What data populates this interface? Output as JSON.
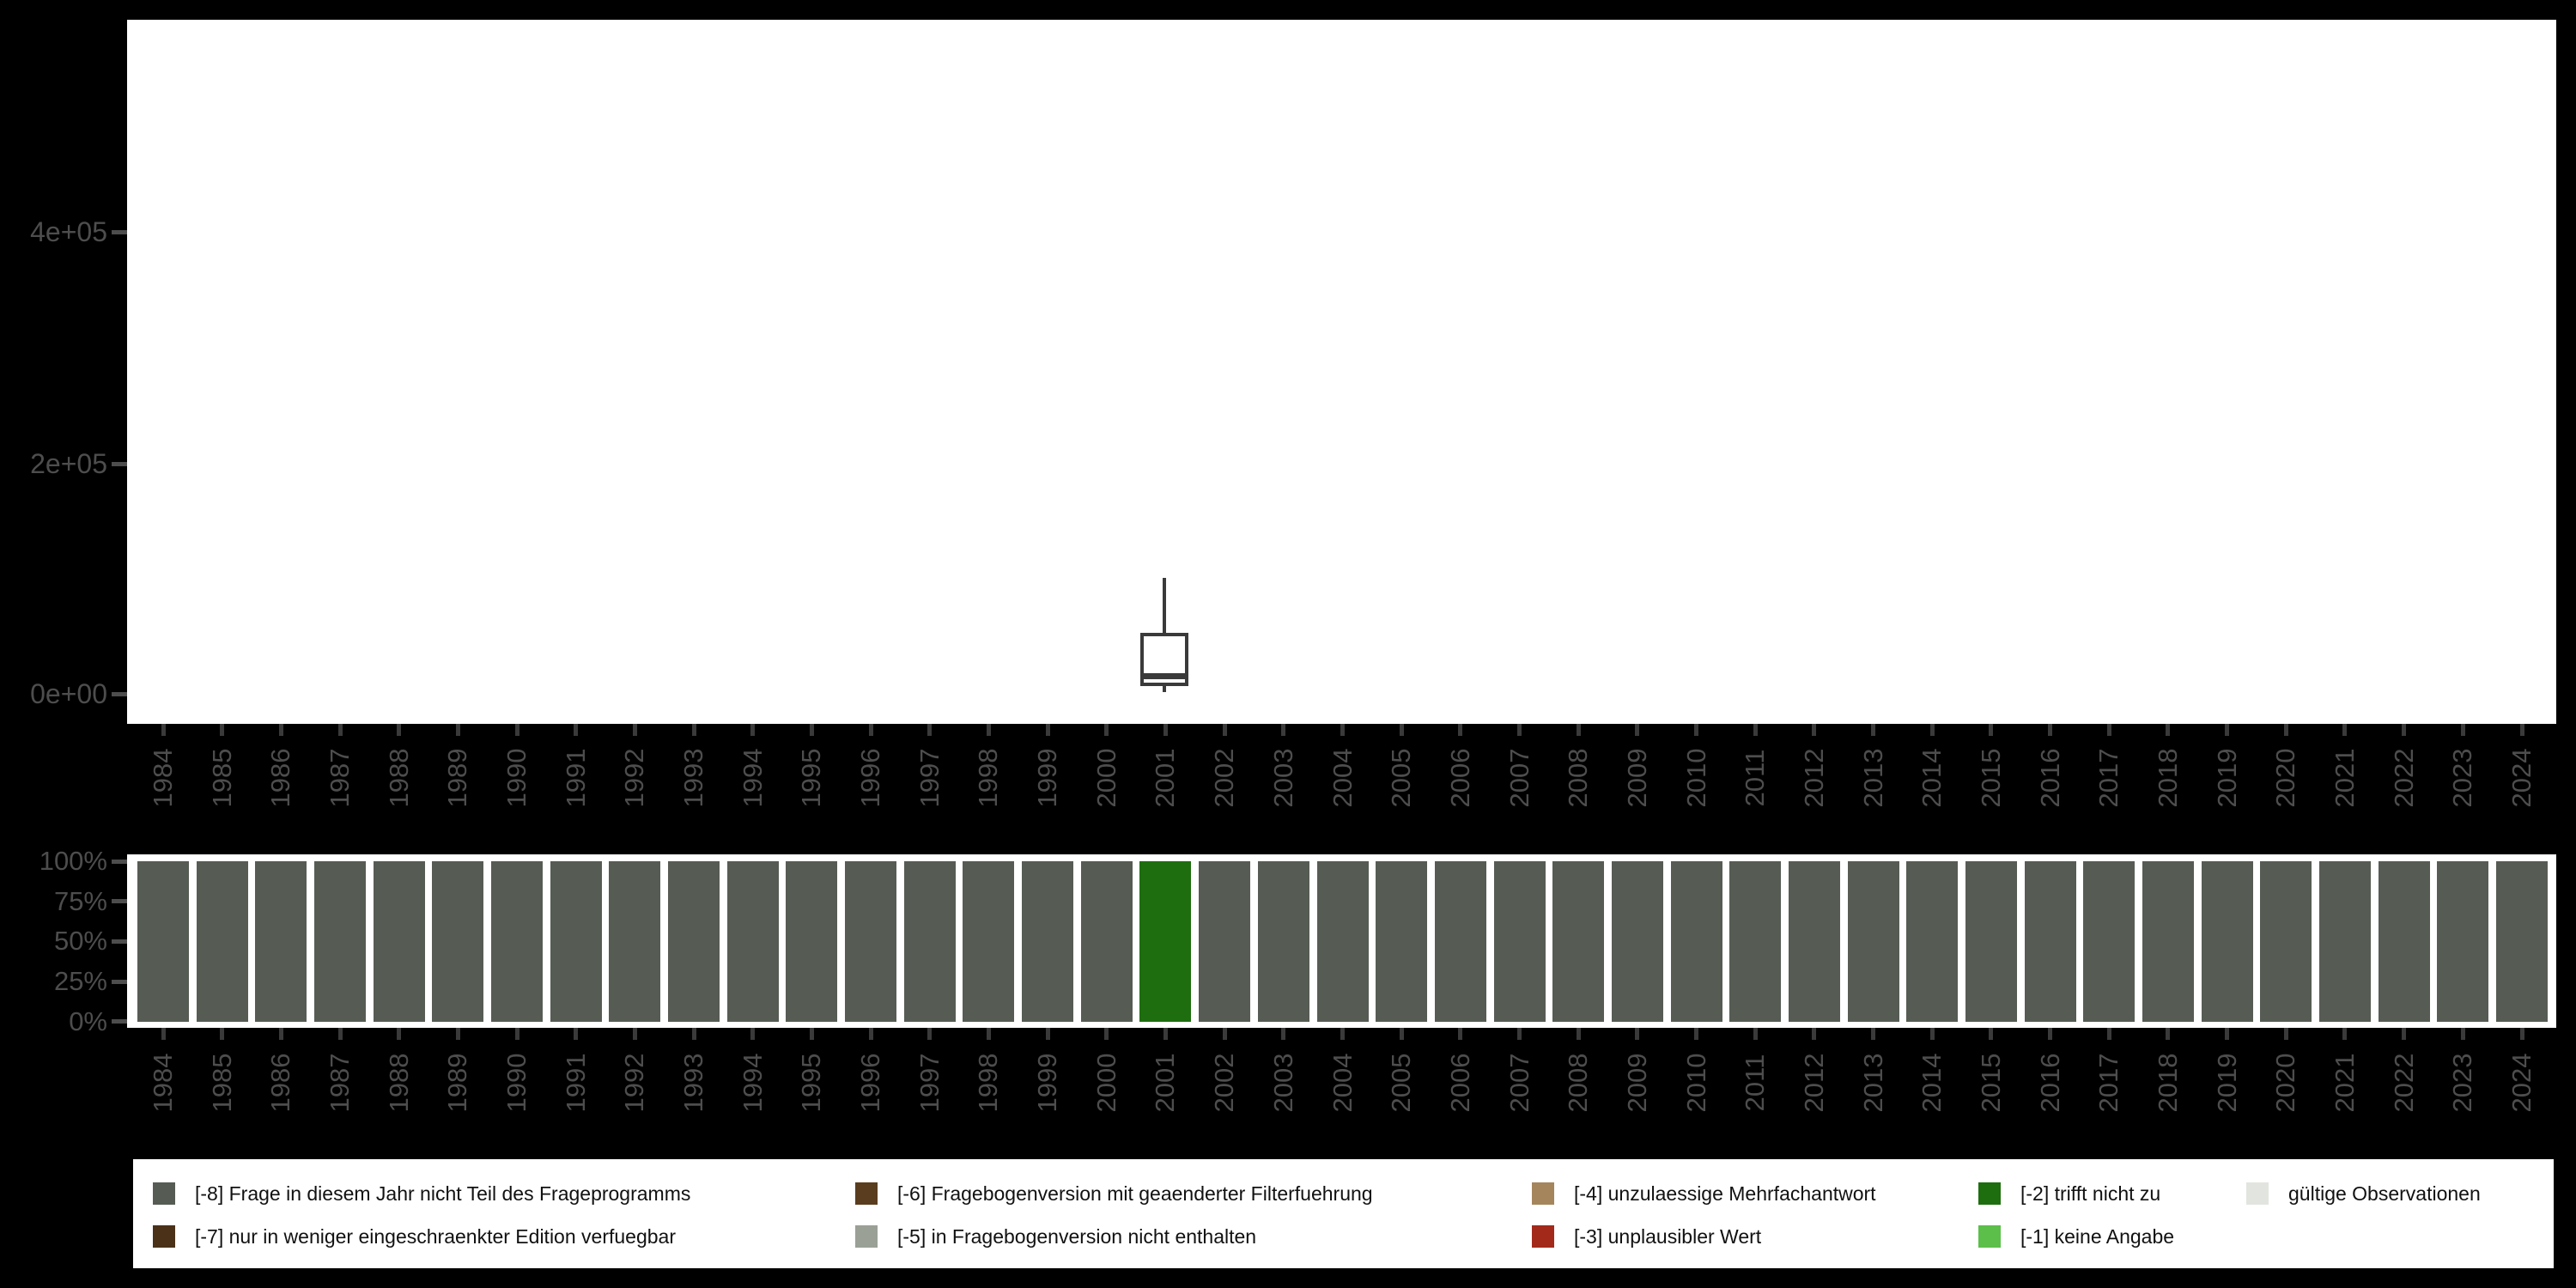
{
  "figure": {
    "background_color": "#000000",
    "panel_background_color": "#ffffff",
    "axis_text_color": "#4d4d4d",
    "tick_color": "#3a3a3a",
    "boxplot_stroke_color": "#3a3a3a"
  },
  "chart_data": [
    {
      "type": "boxplot",
      "title": "",
      "xlabel": "",
      "ylabel": "",
      "grid": false,
      "x_tick_rotation_deg": 90,
      "categories": [
        "1984",
        "1985",
        "1986",
        "1987",
        "1988",
        "1989",
        "1990",
        "1991",
        "1992",
        "1993",
        "1994",
        "1995",
        "1996",
        "1997",
        "1998",
        "1999",
        "2000",
        "2001",
        "2002",
        "2003",
        "2004",
        "2005",
        "2006",
        "2007",
        "2008",
        "2009",
        "2010",
        "2011",
        "2012",
        "2013",
        "2014",
        "2015",
        "2016",
        "2017",
        "2018",
        "2019",
        "2020",
        "2021",
        "2022",
        "2023",
        "2024"
      ],
      "y_ticks": [
        {
          "label": "0e+00",
          "value": 0
        },
        {
          "label": "2e+05",
          "value": 200000
        },
        {
          "label": "4e+05",
          "value": 400000
        }
      ],
      "ylim": [
        0,
        585000
      ],
      "boxes": [
        {
          "category": "2001",
          "lower_whisker": 1500,
          "q1": 6500,
          "median": 16000,
          "q3": 53000,
          "upper_whisker": 101000
        }
      ]
    },
    {
      "type": "bar",
      "stacking": "percent",
      "title": "",
      "xlabel": "",
      "ylabel": "",
      "grid": false,
      "x_tick_rotation_deg": 90,
      "y_tick_labels": [
        "100%",
        "75%",
        "50%",
        "25%",
        "0%"
      ],
      "bars": [
        {
          "year": "1984",
          "code": "[-8]",
          "percent": 100
        },
        {
          "year": "1985",
          "code": "[-8]",
          "percent": 100
        },
        {
          "year": "1986",
          "code": "[-8]",
          "percent": 100
        },
        {
          "year": "1987",
          "code": "[-8]",
          "percent": 100
        },
        {
          "year": "1988",
          "code": "[-8]",
          "percent": 100
        },
        {
          "year": "1989",
          "code": "[-8]",
          "percent": 100
        },
        {
          "year": "1990",
          "code": "[-8]",
          "percent": 100
        },
        {
          "year": "1991",
          "code": "[-8]",
          "percent": 100
        },
        {
          "year": "1992",
          "code": "[-8]",
          "percent": 100
        },
        {
          "year": "1993",
          "code": "[-8]",
          "percent": 100
        },
        {
          "year": "1994",
          "code": "[-8]",
          "percent": 100
        },
        {
          "year": "1995",
          "code": "[-8]",
          "percent": 100
        },
        {
          "year": "1996",
          "code": "[-8]",
          "percent": 100
        },
        {
          "year": "1997",
          "code": "[-8]",
          "percent": 100
        },
        {
          "year": "1998",
          "code": "[-8]",
          "percent": 100
        },
        {
          "year": "1999",
          "code": "[-8]",
          "percent": 100
        },
        {
          "year": "2000",
          "code": "[-8]",
          "percent": 100
        },
        {
          "year": "2001",
          "code": "[-2]",
          "percent": 100
        },
        {
          "year": "2002",
          "code": "[-8]",
          "percent": 100
        },
        {
          "year": "2003",
          "code": "[-8]",
          "percent": 100
        },
        {
          "year": "2004",
          "code": "[-8]",
          "percent": 100
        },
        {
          "year": "2005",
          "code": "[-8]",
          "percent": 100
        },
        {
          "year": "2006",
          "code": "[-8]",
          "percent": 100
        },
        {
          "year": "2007",
          "code": "[-8]",
          "percent": 100
        },
        {
          "year": "2008",
          "code": "[-8]",
          "percent": 100
        },
        {
          "year": "2009",
          "code": "[-8]",
          "percent": 100
        },
        {
          "year": "2010",
          "code": "[-8]",
          "percent": 100
        },
        {
          "year": "2011",
          "code": "[-8]",
          "percent": 100
        },
        {
          "year": "2012",
          "code": "[-8]",
          "percent": 100
        },
        {
          "year": "2013",
          "code": "[-8]",
          "percent": 100
        },
        {
          "year": "2014",
          "code": "[-8]",
          "percent": 100
        },
        {
          "year": "2015",
          "code": "[-8]",
          "percent": 100
        },
        {
          "year": "2016",
          "code": "[-8]",
          "percent": 100
        },
        {
          "year": "2017",
          "code": "[-8]",
          "percent": 100
        },
        {
          "year": "2018",
          "code": "[-8]",
          "percent": 100
        },
        {
          "year": "2019",
          "code": "[-8]",
          "percent": 100
        },
        {
          "year": "2020",
          "code": "[-8]",
          "percent": 100
        },
        {
          "year": "2021",
          "code": "[-8]",
          "percent": 100
        },
        {
          "year": "2022",
          "code": "[-8]",
          "percent": 100
        },
        {
          "year": "2023",
          "code": "[-8]",
          "percent": 100
        },
        {
          "year": "2024",
          "code": "[-8]",
          "percent": 100
        }
      ]
    }
  ],
  "legend": {
    "position": "bottom",
    "items": [
      {
        "code": "[-8]",
        "label": "[-8] Frage in diesem Jahr nicht Teil des Frageprogramms",
        "color": "#565c54",
        "row": 1,
        "col": 1
      },
      {
        "code": "[-7]",
        "label": "[-7] nur in weniger eingeschraenkter Edition verfuegbar",
        "color": "#4a3118",
        "row": 2,
        "col": 1
      },
      {
        "code": "[-6]",
        "label": "[-6] Fragebogenversion mit geaenderter Filterfuehrung",
        "color": "#5a3d1e",
        "row": 1,
        "col": 2
      },
      {
        "code": "[-5]",
        "label": "[-5] in Fragebogenversion nicht enthalten",
        "color": "#9aa096",
        "row": 2,
        "col": 2
      },
      {
        "code": "[-4]",
        "label": "[-4] unzulaessige Mehrfachantwort",
        "color": "#a5855c",
        "row": 1,
        "col": 3
      },
      {
        "code": "[-3]",
        "label": "[-3] unplausibler Wert",
        "color": "#a3291b",
        "row": 2,
        "col": 3
      },
      {
        "code": "[-2]",
        "label": "[-2] trifft nicht zu",
        "color": "#1e6e0f",
        "row": 1,
        "col": 4
      },
      {
        "code": "[-1]",
        "label": "[-1] keine Angabe",
        "color": "#5bbf4a",
        "row": 2,
        "col": 4
      },
      {
        "code": "valid",
        "label": "gültige Observationen",
        "color": "#e2e5df",
        "row": 1,
        "col": 5
      }
    ]
  }
}
